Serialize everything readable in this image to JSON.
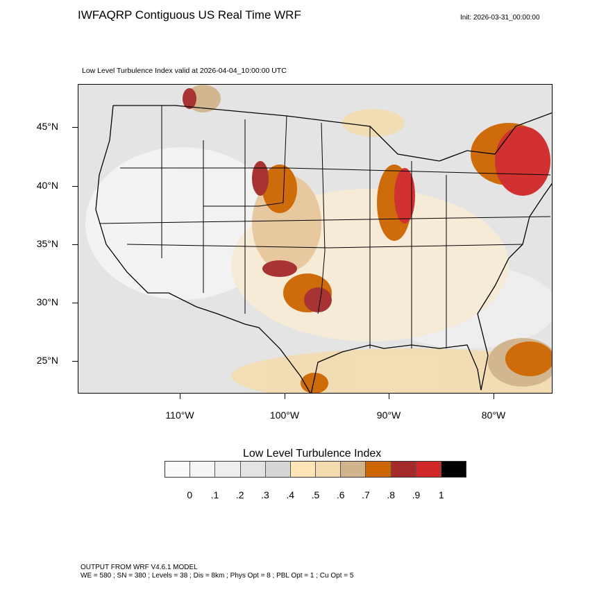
{
  "header": {
    "title": "IWFAQRP Contiguous US Real Time WRF",
    "init": "Init: 2026-03-31_00:00:00",
    "subtitle": "Low Level Turbulence Index valid at 2026-04-04_10:00:00 UTC"
  },
  "map": {
    "lat_labels": [
      "45°N",
      "40°N",
      "35°N",
      "30°N",
      "25°N"
    ],
    "lon_labels": [
      "110°W",
      "100°W",
      "90°W",
      "80°W"
    ]
  },
  "colorbar": {
    "title": "Low Level Turbulence Index",
    "colors": [
      "#fafafa",
      "#f5f5f5",
      "#efefef",
      "#e3e3e3",
      "#d6d6d6",
      "#ffe5b8",
      "#f5dcb0",
      "#d2b48c",
      "#cd6600",
      "#a52a2a",
      "#d02828",
      "#000000"
    ],
    "labels": [
      "0",
      ".1",
      ".2",
      ".3",
      ".4",
      ".5",
      ".6",
      ".7",
      ".8",
      ".9",
      "1"
    ]
  },
  "footer": {
    "line1": "OUTPUT FROM WRF V4.6.1 MODEL",
    "line2": "WE = 580 ; SN = 380 ; Levels = 38 ; Dis = 8km ; Phys Opt = 8 ; PBL Opt = 1 ; Cu Opt = 5"
  }
}
